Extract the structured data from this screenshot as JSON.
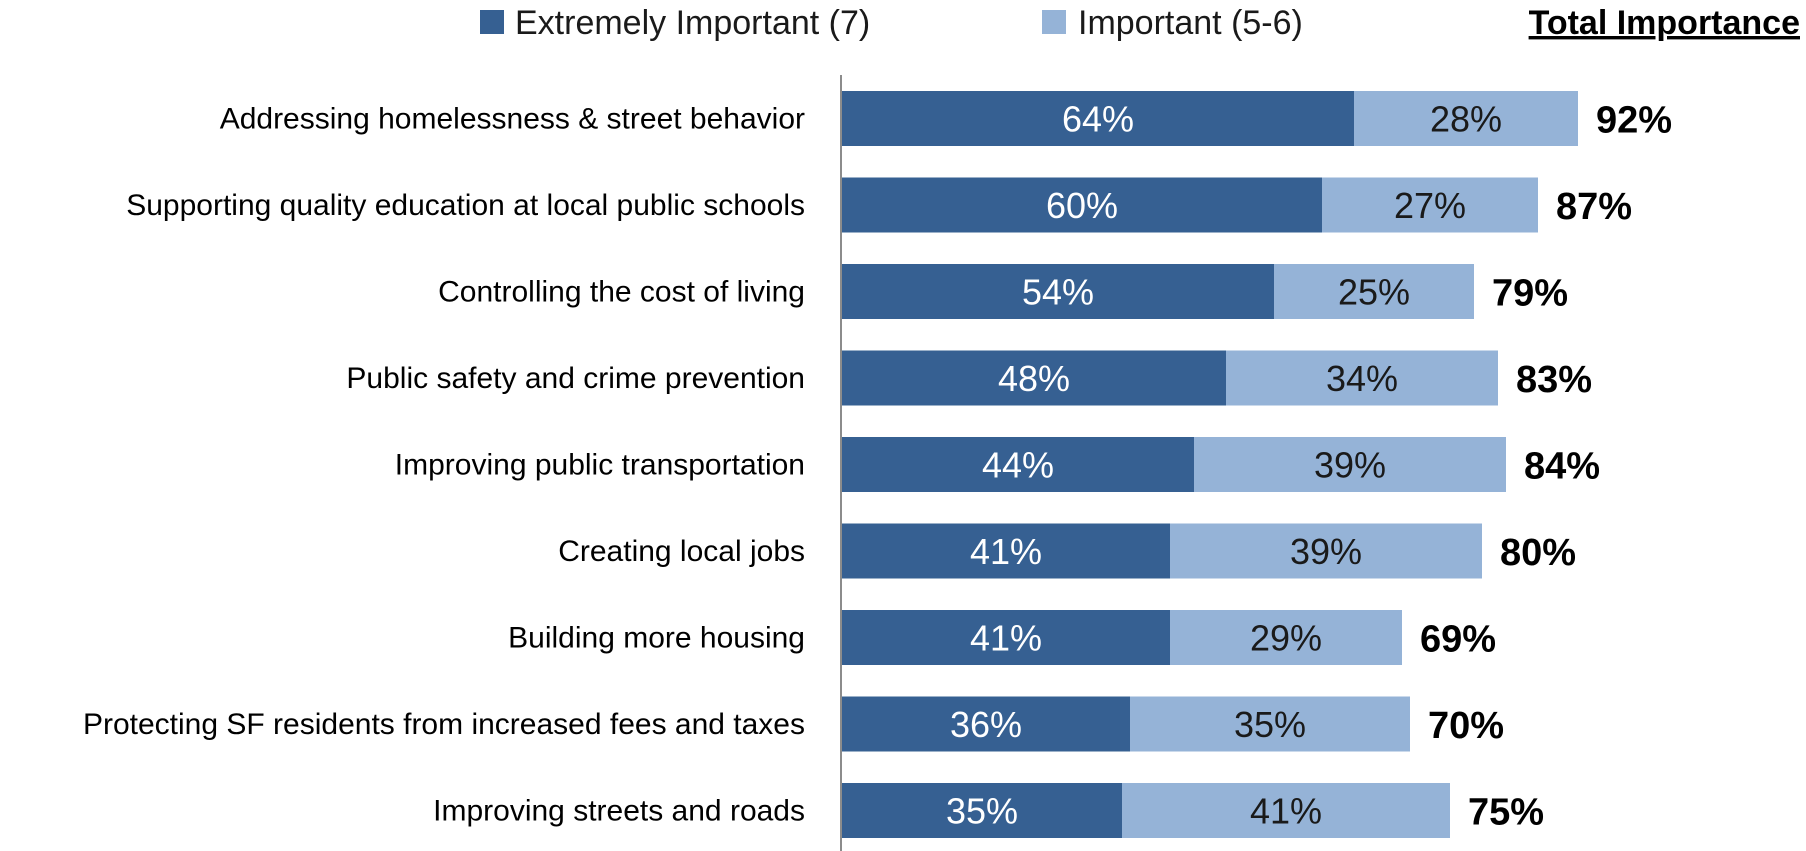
{
  "chart_data": {
    "type": "bar",
    "orientation": "horizontal",
    "stacked": true,
    "categories": [
      "Addressing homelessness & street behavior",
      "Supporting quality education at local public schools",
      "Controlling the cost of living",
      "Public safety and crime prevention",
      "Improving public transportation",
      "Creating local jobs",
      "Building more housing",
      "Protecting SF residents from increased fees and taxes",
      "Improving streets and roads"
    ],
    "series": [
      {
        "name": "Extremely Important (7)",
        "color": "#366092",
        "values": [
          64,
          60,
          54,
          48,
          44,
          41,
          41,
          36,
          35
        ],
        "labels": [
          "64%",
          "60%",
          "54%",
          "48%",
          "44%",
          "41%",
          "41%",
          "36%",
          "35%"
        ]
      },
      {
        "name": "Important (5-6)",
        "color": "#95B3D7",
        "values": [
          28,
          27,
          25,
          34,
          39,
          39,
          29,
          35,
          41
        ],
        "labels": [
          "28%",
          "27%",
          "25%",
          "34%",
          "39%",
          "39%",
          "29%",
          "35%",
          "41%"
        ]
      }
    ],
    "totals_header": "Total Importance",
    "totals": [
      "92%",
      "87%",
      "79%",
      "83%",
      "84%",
      "80%",
      "69%",
      "70%",
      "75%"
    ],
    "xlim": [
      0,
      100
    ],
    "legend_position": "top",
    "grid": false
  }
}
